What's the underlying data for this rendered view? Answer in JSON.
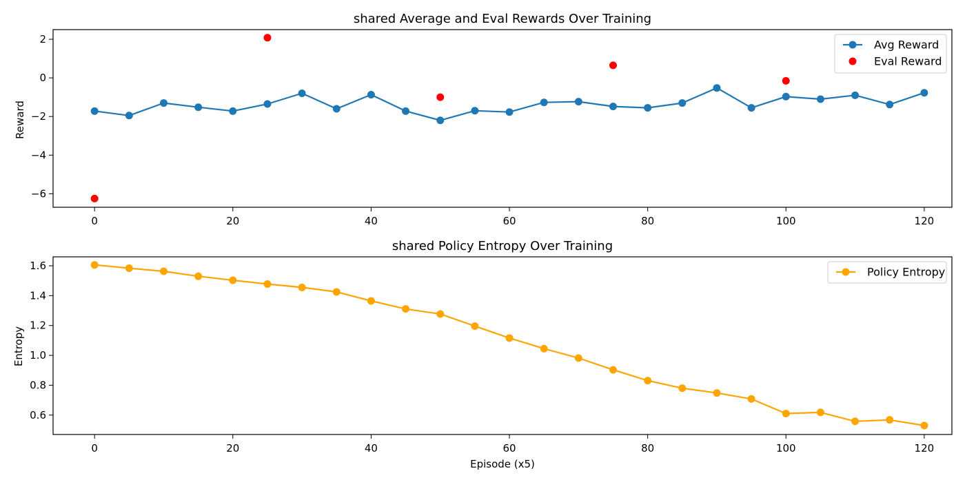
{
  "chart_data": [
    {
      "type": "line",
      "title": "shared Average and Eval Rewards Over Training",
      "xlabel": "",
      "ylabel": "Reward",
      "xlim": [
        -6,
        124
      ],
      "ylim": [
        -6.7,
        2.5
      ],
      "xticks": [
        0,
        20,
        40,
        60,
        80,
        100,
        120
      ],
      "yticks": [
        2,
        0,
        -2,
        -4,
        -6
      ],
      "ytick_labels": [
        "2",
        "0",
        "−2",
        "−4",
        "−6"
      ],
      "grid": false,
      "legend_position": "upper right",
      "series": [
        {
          "name": "Avg Reward",
          "style": "line-marker",
          "color": "#1f77b4",
          "x": [
            0,
            5,
            10,
            15,
            20,
            25,
            30,
            35,
            40,
            45,
            50,
            55,
            60,
            65,
            70,
            75,
            80,
            85,
            90,
            95,
            100,
            105,
            110,
            115,
            120
          ],
          "y": [
            -1.72,
            -1.95,
            -1.3,
            -1.52,
            -1.72,
            -1.35,
            -0.8,
            -1.6,
            -0.87,
            -1.72,
            -2.2,
            -1.7,
            -1.77,
            -1.27,
            -1.23,
            -1.48,
            -1.55,
            -1.3,
            -0.52,
            -1.55,
            -0.97,
            -1.1,
            -0.9,
            -1.38,
            -0.77
          ]
        },
        {
          "name": "Eval Reward",
          "style": "scatter",
          "color": "#ff0000",
          "x": [
            0,
            25,
            50,
            75,
            100
          ],
          "y": [
            -6.25,
            2.08,
            -1.0,
            0.65,
            -0.15
          ]
        }
      ]
    },
    {
      "type": "line",
      "title": "shared Policy Entropy Over Training",
      "xlabel": "Episode (x5)",
      "ylabel": "Entropy",
      "xlim": [
        -6,
        124
      ],
      "ylim": [
        0.47,
        1.66
      ],
      "xticks": [
        0,
        20,
        40,
        60,
        80,
        100,
        120
      ],
      "yticks": [
        1.6,
        1.4,
        1.2,
        1.0,
        0.8,
        0.6
      ],
      "ytick_labels": [
        "1.6",
        "1.4",
        "1.2",
        "1.0",
        "0.8",
        "0.6"
      ],
      "grid": false,
      "legend_position": "upper right",
      "series": [
        {
          "name": "Policy Entropy",
          "style": "line-marker",
          "color": "#ffa500",
          "x": [
            0,
            5,
            10,
            15,
            20,
            25,
            30,
            35,
            40,
            45,
            50,
            55,
            60,
            65,
            70,
            75,
            80,
            85,
            90,
            95,
            100,
            105,
            110,
            115,
            120
          ],
          "y": [
            1.606,
            1.584,
            1.563,
            1.53,
            1.503,
            1.478,
            1.455,
            1.425,
            1.365,
            1.311,
            1.277,
            1.196,
            1.116,
            1.045,
            0.982,
            0.903,
            0.831,
            0.78,
            0.748,
            0.708,
            0.61,
            0.618,
            0.558,
            0.568,
            0.53
          ]
        }
      ]
    }
  ]
}
